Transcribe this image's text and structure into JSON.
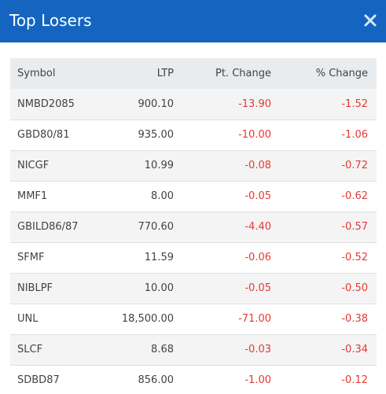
{
  "header": {
    "title": "Top Losers",
    "close_icon": "close-icon",
    "background": "#1565c0"
  },
  "table": {
    "columns": [
      "Symbol",
      "LTP",
      "Pt. Change",
      "% Change"
    ],
    "rows": [
      {
        "symbol": "NMBD2085",
        "ltp": "900.10",
        "pt_change": "-13.90",
        "pct_change": "-1.52"
      },
      {
        "symbol": "GBD80/81",
        "ltp": "935.00",
        "pt_change": "-10.00",
        "pct_change": "-1.06"
      },
      {
        "symbol": "NICGF",
        "ltp": "10.99",
        "pt_change": "-0.08",
        "pct_change": "-0.72"
      },
      {
        "symbol": "MMF1",
        "ltp": "8.00",
        "pt_change": "-0.05",
        "pct_change": "-0.62"
      },
      {
        "symbol": "GBILD86/87",
        "ltp": "770.60",
        "pt_change": "-4.40",
        "pct_change": "-0.57"
      },
      {
        "symbol": "SFMF",
        "ltp": "11.59",
        "pt_change": "-0.06",
        "pct_change": "-0.52"
      },
      {
        "symbol": "NIBLPF",
        "ltp": "10.00",
        "pt_change": "-0.05",
        "pct_change": "-0.50"
      },
      {
        "symbol": "UNL",
        "ltp": "18,500.00",
        "pt_change": "-71.00",
        "pct_change": "-0.38"
      },
      {
        "symbol": "SLCF",
        "ltp": "8.68",
        "pt_change": "-0.03",
        "pct_change": "-0.34"
      },
      {
        "symbol": "SDBD87",
        "ltp": "856.00",
        "pt_change": "-1.00",
        "pct_change": "-0.12"
      }
    ],
    "negative_color": "#e53935"
  }
}
